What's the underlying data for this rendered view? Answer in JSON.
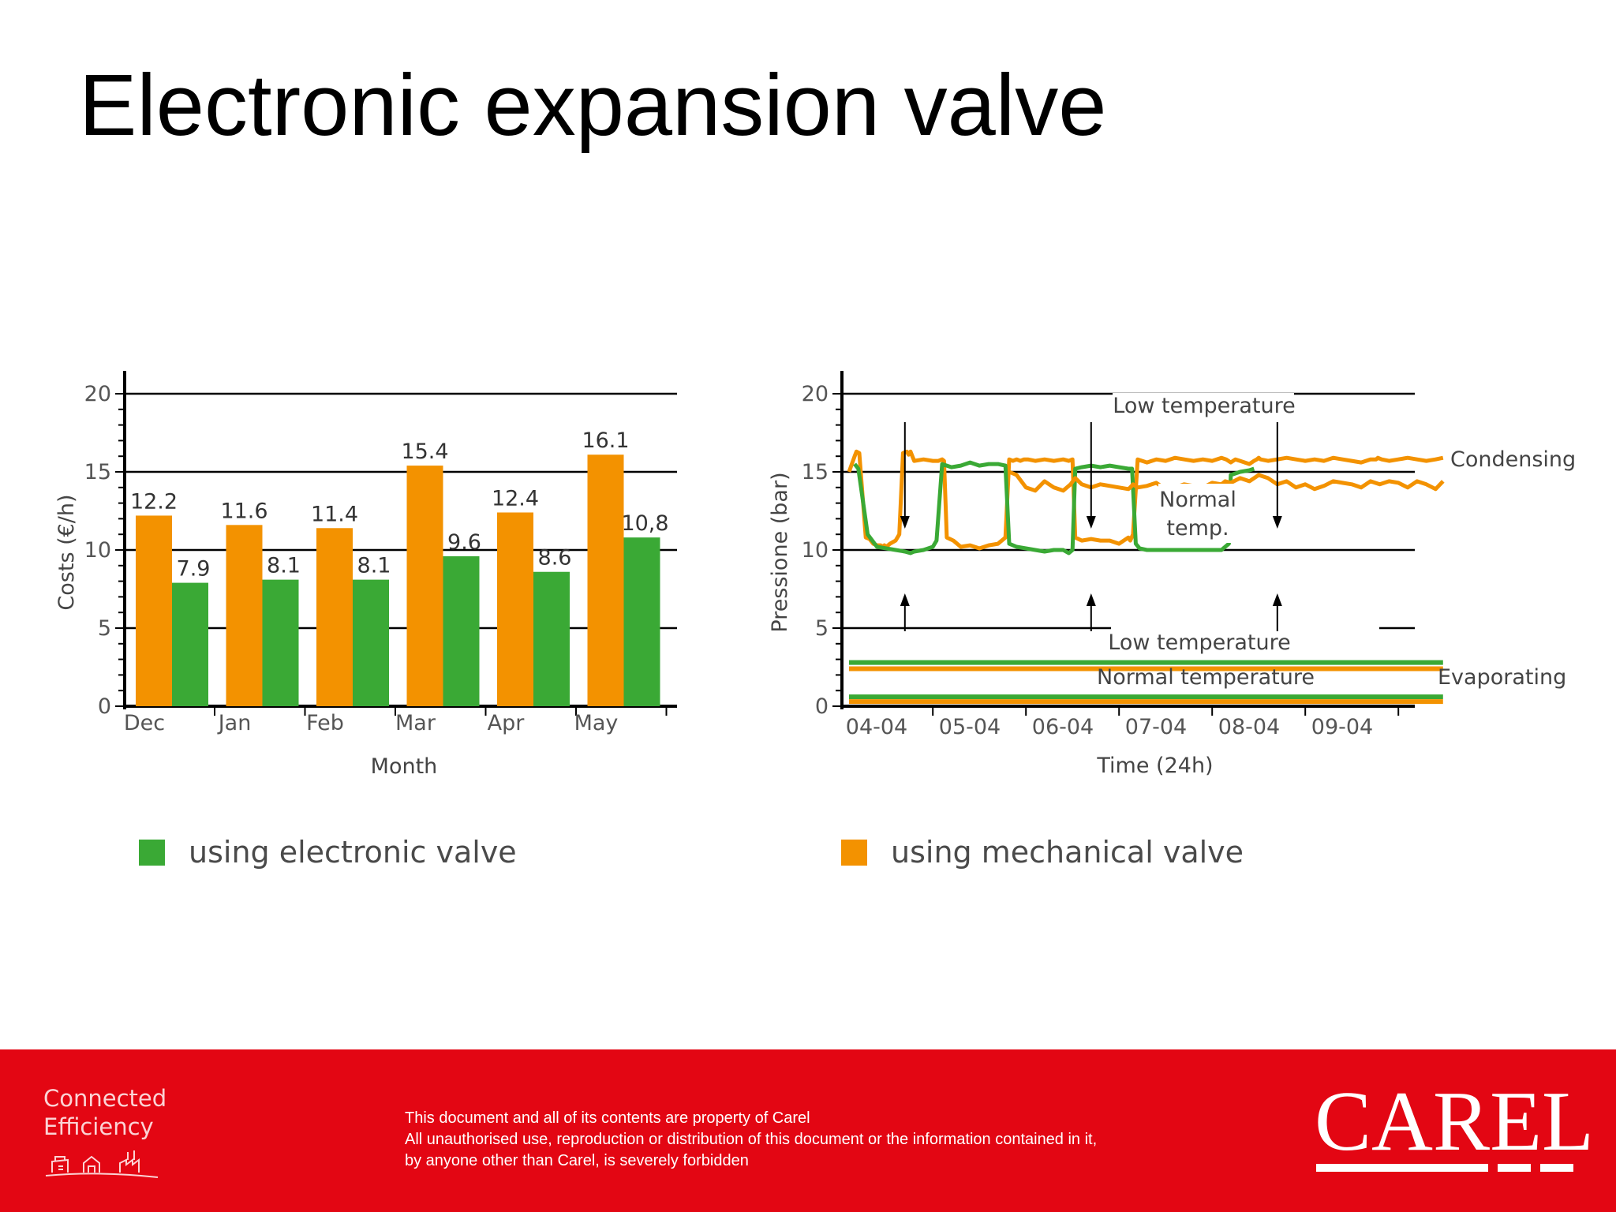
{
  "title": "Electronic expansion valve",
  "colors": {
    "mechanical": "#f39200",
    "electronic": "#3aa935",
    "footer": "#e30613"
  },
  "chart_data": [
    {
      "type": "bar",
      "categories": [
        "Dec",
        "Jan",
        "Feb",
        "Mar",
        "Apr",
        "May"
      ],
      "series": [
        {
          "name": "using mechanical valve",
          "values": [
            12.2,
            11.6,
            11.4,
            15.4,
            12.4,
            16.1
          ],
          "labels": [
            "12.2",
            "11.6",
            "11.4",
            "15.4",
            "12.4",
            "16.1"
          ]
        },
        {
          "name": "using electronic valve",
          "values": [
            7.9,
            8.1,
            8.1,
            9.6,
            8.6,
            10.8
          ],
          "labels": [
            "7.9",
            "8.1",
            "8.1",
            "9.6",
            "8.6",
            "10,8"
          ]
        }
      ],
      "xlabel": "Month",
      "ylabel": "Costs (€/h)",
      "ylim": [
        0,
        20
      ],
      "yticks": [
        "0",
        "5",
        "10",
        "15",
        "20"
      ],
      "grid": true
    },
    {
      "type": "line",
      "x_tick_labels": [
        "04-04",
        "05-04",
        "06-04",
        "07-04",
        "08-04",
        "09-04"
      ],
      "xlabel": "Time (24h)",
      "ylabel": "Pressione (bar)",
      "ylim": [
        0,
        20
      ],
      "yticks": [
        "0",
        "5",
        "10",
        "15",
        "20"
      ],
      "grid": true,
      "region_labels": {
        "condensing": "Condensing",
        "evaporating": "Evaporating"
      },
      "annotations": {
        "low_temperature_top": "Low temperature",
        "normal_temp": [
          "Normal",
          "temp."
        ],
        "low_temperature_bottom": "Low temperature",
        "normal_temperature": "Normal temperature"
      },
      "series": [
        {
          "name": "Condensing (mechanical valve)",
          "color": "mechanical",
          "x": [
            0,
            0.06,
            0.08,
            0.11,
            0.18,
            0.22,
            0.26,
            0.3,
            0.34,
            0.36,
            0.38,
            0.4,
            0.44,
            0.5,
            0.54,
            0.58,
            0.62,
            0.64,
            0.66,
            0.7,
            0.8,
            0.9,
            0.96,
            1.0,
            1.02,
            1.05,
            1.12,
            1.2,
            1.3,
            1.4,
            1.5,
            1.6,
            1.68,
            1.72,
            1.76,
            1.8,
            1.84,
            1.88,
            1.92,
            2.0,
            2.1,
            2.2,
            2.3,
            2.36,
            2.4,
            2.43,
            2.5,
            2.6,
            2.7,
            2.8,
            2.9,
            3.0,
            3.02,
            3.05,
            3.1,
            3.2,
            3.3,
            3.4,
            3.5,
            3.6,
            3.7,
            3.8,
            3.9,
            4.0,
            4.05,
            4.1,
            4.15,
            4.2,
            4.25,
            4.3,
            4.35,
            4.38,
            4.4,
            4.42,
            4.5,
            4.6,
            4.7,
            4.8,
            4.9,
            5.0,
            5.1,
            5.2,
            5.3,
            5.4,
            5.5,
            5.6,
            5.66,
            5.68,
            5.72,
            5.8,
            5.9,
            6.0,
            6.1,
            6.2,
            6.3,
            6.38
          ],
          "y": [
            15.0,
            16.0,
            16.3,
            16.2,
            10.8,
            10.7,
            10.4,
            10.3,
            10.3,
            10.2,
            10.3,
            10.2,
            10.4,
            10.6,
            11.0,
            16.2,
            16.3,
            16.1,
            16.3,
            15.7,
            15.8,
            15.7,
            15.7,
            15.8,
            15.7,
            10.8,
            10.6,
            10.2,
            10.3,
            10.1,
            10.3,
            10.4,
            10.8,
            15.8,
            15.7,
            15.8,
            15.7,
            15.8,
            15.8,
            15.7,
            15.8,
            15.7,
            15.8,
            15.7,
            15.8,
            10.8,
            10.6,
            10.7,
            10.6,
            10.6,
            10.4,
            10.8,
            10.6,
            11.0,
            15.8,
            15.6,
            15.8,
            15.7,
            15.9,
            15.8,
            15.7,
            15.8,
            15.7,
            15.9,
            15.8,
            15.6,
            15.8,
            15.7,
            15.6,
            15.5,
            15.7,
            15.8,
            15.9,
            15.8,
            15.7,
            15.8,
            15.9,
            15.8,
            15.7,
            15.8,
            15.7,
            15.9,
            15.8,
            15.7,
            15.6,
            15.8,
            15.8,
            15.9,
            15.8,
            15.7,
            15.8,
            15.9,
            15.8,
            15.7,
            15.8,
            15.9
          ]
        },
        {
          "name": "Condensing (electronic valve)",
          "color": "electronic",
          "x": [
            0.06,
            0.1,
            0.2,
            0.3,
            0.4,
            0.5,
            0.6,
            0.66,
            0.7,
            0.8,
            0.9,
            0.94,
            1.0,
            1.05,
            1.1,
            1.2,
            1.3,
            1.4,
            1.5,
            1.6,
            1.68,
            1.72,
            1.8,
            1.9,
            2.0,
            2.1,
            2.2,
            2.3,
            2.36,
            2.4,
            2.43,
            2.5,
            2.6,
            2.7,
            2.8,
            2.9,
            3.0,
            3.04,
            3.08,
            3.12,
            3.2,
            3.3,
            3.4,
            3.5,
            3.6,
            3.7,
            3.8,
            3.9,
            4.0,
            4.04,
            4.08,
            4.1,
            4.2,
            4.3,
            4.35
          ],
          "y": [
            15.5,
            15.2,
            11.0,
            10.2,
            10.1,
            10.0,
            9.9,
            9.8,
            9.9,
            10.0,
            10.2,
            10.6,
            15.5,
            15.4,
            15.3,
            15.4,
            15.6,
            15.4,
            15.5,
            15.5,
            15.4,
            10.4,
            10.2,
            10.1,
            10.0,
            9.9,
            10.0,
            10.0,
            9.8,
            10.0,
            15.2,
            15.3,
            15.4,
            15.3,
            15.4,
            15.3,
            15.2,
            15.2,
            10.4,
            10.1,
            10.0,
            10.0,
            10.0,
            10.0,
            10.0,
            10.0,
            10.0,
            10.0,
            10.0,
            10.2,
            10.4,
            14.8,
            15.0,
            15.1,
            15.2
          ]
        },
        {
          "name": "Condensing (secondary trace)",
          "color": "mechanical",
          "x": [
            1.72,
            1.8,
            1.9,
            2.0,
            2.1,
            2.2,
            2.3,
            2.38,
            2.43,
            2.5,
            2.6,
            2.7,
            2.8,
            2.9,
            3.0,
            3.02,
            3.05,
            3.1,
            3.2,
            3.3,
            3.4,
            3.5,
            3.6,
            3.7,
            3.8,
            3.9,
            4.0,
            4.04,
            4.1,
            4.2,
            4.3,
            4.4,
            4.5,
            4.6,
            4.7,
            4.8,
            4.9,
            5.0,
            5.1,
            5.2,
            5.3,
            5.4,
            5.5,
            5.6,
            5.7,
            5.8,
            5.9,
            6.0,
            6.1,
            6.2,
            6.3,
            6.38
          ],
          "y": [
            15.0,
            14.8,
            14.0,
            13.8,
            14.4,
            14.0,
            13.8,
            14.2,
            14.6,
            14.2,
            14.0,
            14.2,
            14.1,
            14.0,
            13.9,
            14.0,
            14.2,
            14.0,
            14.1,
            14.3,
            13.9,
            14.0,
            14.2,
            14.1,
            14.0,
            14.3,
            14.2,
            14.4,
            14.3,
            14.6,
            14.4,
            14.8,
            14.6,
            14.2,
            14.4,
            14.0,
            14.2,
            13.9,
            14.1,
            14.4,
            14.3,
            14.2,
            14.0,
            14.4,
            14.2,
            14.4,
            14.3,
            14.0,
            14.4,
            14.2,
            13.9,
            14.4
          ]
        },
        {
          "name": "Evaporating low temperature (electronic)",
          "color": "electronic",
          "x": [
            0.0,
            1.2,
            2.4,
            3.6,
            4.8,
            6.38
          ],
          "y": [
            2.8,
            2.8,
            2.8,
            2.8,
            2.8,
            2.8
          ]
        },
        {
          "name": "Evaporating normal temperature (electronic)",
          "color": "electronic",
          "x": [
            0.0,
            1.2,
            2.4,
            3.6,
            4.8,
            6.38
          ],
          "y": [
            0.6,
            0.6,
            0.6,
            0.6,
            0.6,
            0.6
          ]
        },
        {
          "name": "Evaporating low temperature (mechanical)",
          "color": "mechanical",
          "x": [
            0.0,
            1.2,
            2.4,
            3.6,
            4.8,
            6.38
          ],
          "y": [
            2.4,
            2.4,
            2.4,
            2.4,
            2.4,
            2.4
          ]
        },
        {
          "name": "Evaporating normal temperature (mechanical)",
          "color": "mechanical",
          "x": [
            0.0,
            1.2,
            2.4,
            3.6,
            4.8,
            6.38
          ],
          "y": [
            0.3,
            0.3,
            0.3,
            0.3,
            0.3,
            0.3
          ]
        }
      ]
    }
  ],
  "legend": {
    "electronic": "using electronic valve",
    "mechanical": "using mechanical valve"
  },
  "footer": {
    "tagline": [
      "Connected",
      "Efficiency"
    ],
    "notice": [
      "This document and all of its contents are property of Carel",
      "All unauthorised use, reproduction or distribution of this document or the information contained in it,",
      "by anyone other than Carel, is severely forbidden"
    ],
    "brand": "CAREL"
  }
}
